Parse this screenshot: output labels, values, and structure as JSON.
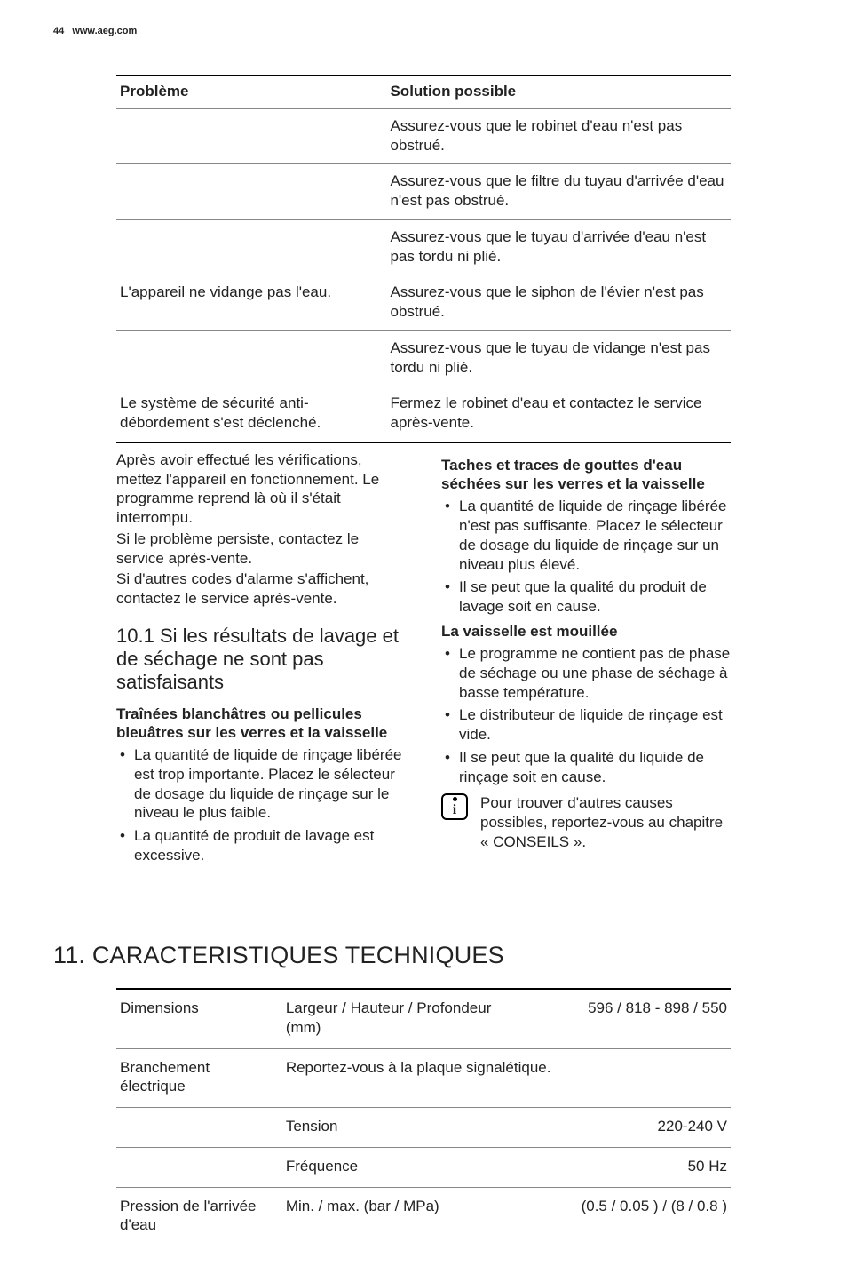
{
  "header": {
    "page_number": "44",
    "site": "www.aeg.com"
  },
  "trouble": {
    "col_problem": "Problème",
    "col_solution": "Solution possible",
    "rows": [
      {
        "problem": "",
        "solution": "Assurez-vous que le robinet d'eau n'est pas obstrué."
      },
      {
        "problem": "",
        "solution": "Assurez-vous que le filtre du tuyau d'arrivée d'eau n'est pas obstrué."
      },
      {
        "problem": "",
        "solution": "Assurez-vous que le tuyau d'arrivée d'eau n'est pas tordu ni plié."
      },
      {
        "problem": "L'appareil ne vidange pas l'eau.",
        "solution": "Assurez-vous que le siphon de l'évier n'est pas obstrué."
      },
      {
        "problem": "",
        "solution": "Assurez-vous que le tuyau de vidange n'est pas tordu ni plié."
      },
      {
        "problem": "Le système de sécurité anti-débordement s'est déclenché.",
        "solution": "Fermez le robinet d'eau et contactez le service après-vente."
      }
    ]
  },
  "after_text": {
    "p1": "Après avoir effectué les vérifications, mettez l'appareil en fonctionnement. Le programme reprend là où il s'était interrompu.",
    "p2": "Si le problème persiste, contactez le service après-vente.",
    "p3": "Si d'autres codes d'alarme s'affichent, contactez le service après-vente."
  },
  "section_101": {
    "num": "10.1",
    "title": "Si les résultats de lavage et de séchage ne sont pas satisfaisants",
    "sub_a_title": "Traînées blanchâtres ou pellicules bleuâtres sur les verres et la vaisselle",
    "sub_a_items": [
      "La quantité de liquide de rinçage libérée est trop importante. Placez le sélecteur de dosage du liquide de rinçage sur le niveau le plus faible.",
      "La quantité de produit de lavage est excessive."
    ],
    "sub_b_title": "Taches et traces de gouttes d'eau séchées sur les verres et la vaisselle",
    "sub_b_items": [
      "La quantité de liquide de rinçage libérée n'est pas suffisante. Placez le sélecteur de dosage du liquide de rinçage sur un niveau plus élevé.",
      "Il se peut que la qualité du produit de lavage soit en cause."
    ],
    "sub_c_title": "La vaisselle est mouillée",
    "sub_c_items": [
      "Le programme ne contient pas de phase de séchage ou une phase de séchage à basse température.",
      "Le distributeur de liquide de rinçage est vide.",
      "Il se peut que la qualité du liquide de rinçage soit en cause."
    ],
    "info_text": "Pour trouver d'autres causes possibles, reportez-vous au chapitre « CONSEILS »."
  },
  "section_11": {
    "num": "11.",
    "title": "CARACTERISTIQUES TECHNIQUES",
    "rows": [
      {
        "c1": "Dimensions",
        "c2": "Largeur / Hauteur / Profondeur (mm)",
        "c3": "596 / 818 - 898 / 550"
      },
      {
        "c1": "Branchement électrique",
        "c2": "Reportez-vous à la plaque signalétique.",
        "c3": ""
      },
      {
        "c1": "",
        "c2": "Tension",
        "c3": "220-240 V"
      },
      {
        "c1": "",
        "c2": "Fréquence",
        "c3": "50 Hz"
      },
      {
        "c1": "Pression de l'arrivée d'eau",
        "c2": "Min. / max. (bar / MPa)",
        "c3": "(0.5 / 0.05 ) / (8 / 0.8 )"
      }
    ]
  },
  "colors": {
    "text": "#222222",
    "rule_thick": "#000000",
    "rule_thin": "#888888",
    "background": "#ffffff"
  }
}
